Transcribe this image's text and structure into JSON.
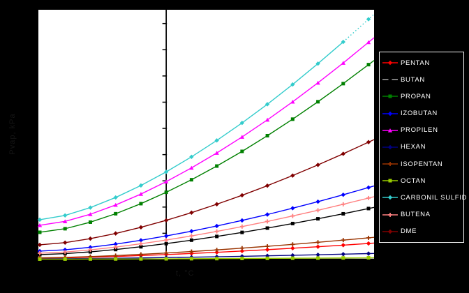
{
  "window": {
    "background_color": "#000000"
  },
  "chart_data": {
    "type": "line",
    "title": "",
    "x_label": "t, °C",
    "y_label": "Pvap, kPa",
    "axis_label_color": "#151515",
    "x": [
      -50,
      -40,
      -30,
      -20,
      -10,
      0,
      10,
      20,
      30,
      40,
      50,
      60,
      70,
      80
    ],
    "xlim": [
      -50.55,
      82.2
    ],
    "ylim": [
      0,
      4762
    ],
    "y_tick_step": 500,
    "y_axis_crosses_at_x": 0,
    "grid": false,
    "legend_position": "right",
    "legend_border_color": "#f2f2f2",
    "legend_text_color": "#ffffff",
    "series": [
      {
        "name": "PENTAN",
        "color": "#FF0000",
        "marker": "diamond",
        "values": [
          27,
          33,
          44,
          58,
          75,
          94,
          115,
          137,
          162,
          188,
          215,
          244,
          274,
          306
        ]
      },
      {
        "name": "BUTAN",
        "color": "#000000",
        "legend_line_color": "#A6A6A6",
        "marker": "square",
        "values": [
          93,
          112,
          146,
          190,
          243,
          303,
          369,
          440,
          517,
          599,
          686,
          777,
          872,
          972
        ]
      },
      {
        "name": "PROPAN",
        "color": "#008000",
        "marker": "square",
        "values": [
          519,
          587,
          712,
          873,
          1065,
          1282,
          1521,
          1782,
          2062,
          2361,
          2676,
          3008,
          3354,
          3716
        ]
      },
      {
        "name": "IZOBUTAN",
        "color": "#0000FF",
        "marker": "diamond",
        "values": [
          160,
          186,
          233,
          294,
          367,
          449,
          540,
          639,
          745,
          858,
          978,
          1103,
          1235,
          1372
        ]
      },
      {
        "name": "PROPILEN",
        "color": "#FF00FF",
        "marker": "triangle",
        "values": [
          653,
          727,
          863,
          1040,
          1248,
          1485,
          1747,
          2032,
          2337,
          2663,
          3007,
          3369,
          3747,
          4142
        ]
      },
      {
        "name": "HEXAN",
        "color": "#000080",
        "marker": "diamond",
        "values": [
          13,
          15,
          19,
          24,
          30,
          37,
          44,
          53,
          61,
          71,
          80,
          91,
          102,
          113
        ]
      },
      {
        "name": "ISOPENTAN",
        "color": "#993300",
        "marker": "plus",
        "values": [
          33,
          41,
          56,
          75,
          98,
          124,
          152,
          183,
          217,
          252,
          289,
          329,
          370,
          413
        ]
      },
      {
        "name": "OCTAN",
        "color": "#99CC00",
        "marker": "square",
        "values": [
          7,
          8,
          9,
          10,
          11,
          13,
          15,
          17,
          20,
          22,
          25,
          27,
          30,
          33
        ]
      },
      {
        "name": "CARBONIL SULFID",
        "color": "#33CCCC",
        "marker": "diamond",
        "dotted_tail": true,
        "values": [
          759,
          841,
          990,
          1183,
          1412,
          1671,
          1958,
          2270,
          2605,
          2961,
          3338,
          3735,
          4149,
          4582
        ]
      },
      {
        "name": "BUTENA",
        "color": "#FF8080",
        "marker": "plus",
        "values": [
          120,
          142,
          184,
          237,
          300,
          371,
          450,
          536,
          628,
          726,
          830,
          939,
          1053,
          1172
        ]
      },
      {
        "name": "DME",
        "color": "#800000",
        "marker": "diamond",
        "values": [
          280,
          322,
          398,
          497,
          614,
          747,
          894,
          1054,
          1225,
          1408,
          1601,
          1804,
          2016,
          2238
        ]
      }
    ]
  }
}
